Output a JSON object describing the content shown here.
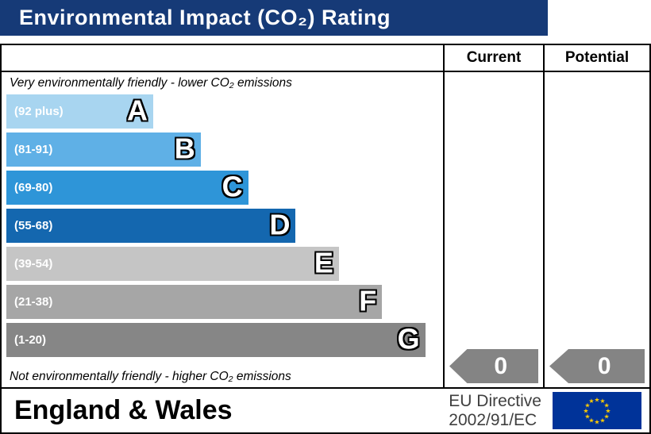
{
  "title": "Environmental Impact (CO₂) Rating",
  "columns": {
    "current": "Current",
    "potential": "Potential"
  },
  "captions": {
    "top": "Very environmentally friendly - lower CO₂ emissions",
    "bottom": "Not environmentally friendly - higher CO₂ emissions"
  },
  "bands": [
    {
      "letter": "A",
      "range": "(92 plus)",
      "color": "#a8d5f0",
      "width_pct": 34
    },
    {
      "letter": "B",
      "range": "(81-91)",
      "color": "#5fb0e6",
      "width_pct": 45
    },
    {
      "letter": "C",
      "range": "(69-80)",
      "color": "#2e95d8",
      "width_pct": 56
    },
    {
      "letter": "D",
      "range": "(55-68)",
      "color": "#1467af",
      "width_pct": 67
    },
    {
      "letter": "E",
      "range": "(39-54)",
      "color": "#c5c5c5",
      "width_pct": 77
    },
    {
      "letter": "F",
      "range": "(21-38)",
      "color": "#a6a6a6",
      "width_pct": 87
    },
    {
      "letter": "G",
      "range": "(1-20)",
      "color": "#868686",
      "width_pct": 97
    }
  ],
  "ratings": {
    "current": "0",
    "potential": "0"
  },
  "arrow_color": "#848484",
  "header_bar_color": "#163a77",
  "footer": {
    "region": "England & Wales",
    "directive_line1": "EU Directive",
    "directive_line2": "2002/91/EC"
  },
  "flag": {
    "name": "eu-flag",
    "background": "#003399",
    "star_color": "#ffcc00"
  },
  "chart_data": {
    "type": "bar",
    "title": "Environmental Impact (CO₂) Rating",
    "categories": [
      "A",
      "B",
      "C",
      "D",
      "E",
      "F",
      "G"
    ],
    "band_ranges": [
      "92 plus",
      "81-91",
      "69-80",
      "55-68",
      "39-54",
      "21-38",
      "1-20"
    ],
    "band_colors": [
      "#a8d5f0",
      "#5fb0e6",
      "#2e95d8",
      "#1467af",
      "#c5c5c5",
      "#a6a6a6",
      "#868686"
    ],
    "bar_length_pct": [
      34,
      45,
      56,
      67,
      77,
      87,
      97
    ],
    "series": [
      {
        "name": "Current",
        "values": [
          0
        ]
      },
      {
        "name": "Potential",
        "values": [
          0
        ]
      }
    ],
    "annotations": [
      "Very environmentally friendly - lower CO₂ emissions",
      "Not environmentally friendly - higher CO₂ emissions"
    ],
    "legend_position": "none",
    "grid": false
  }
}
